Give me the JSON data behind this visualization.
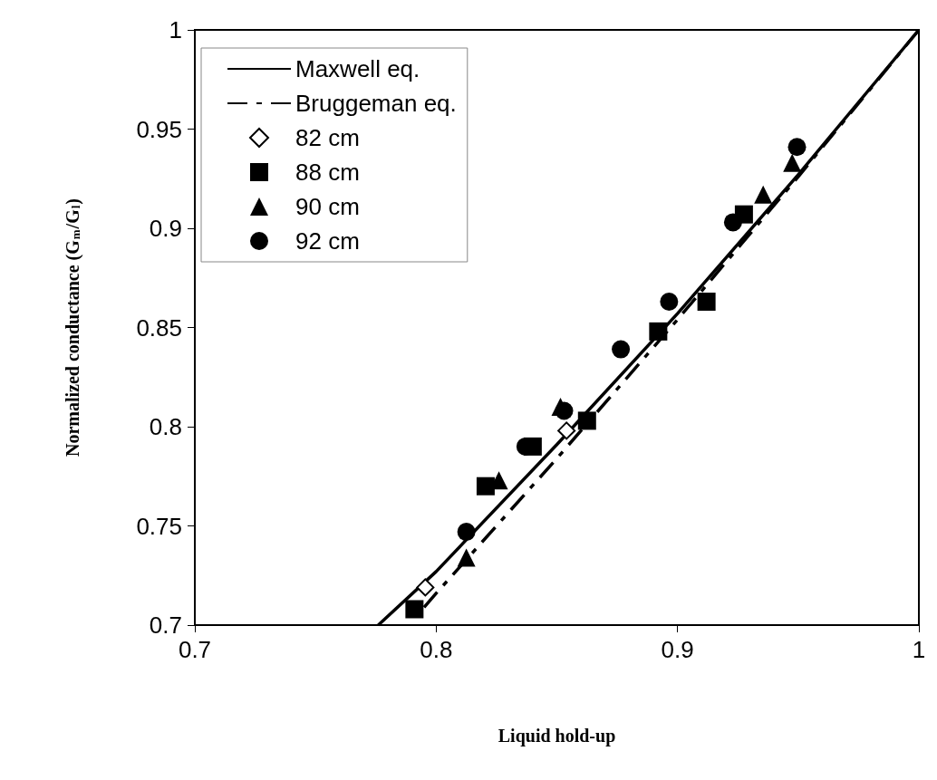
{
  "chart_data": {
    "type": "scatter",
    "xlabel": "Liquid hold-up",
    "ylabel": "Normalized conductance (G$_{m}$/G$_{l}$)",
    "xlim": [
      0.7,
      1
    ],
    "xticks": [
      0.7,
      0.8,
      0.9,
      1
    ],
    "ylim": [
      0.7,
      1
    ],
    "yticks": [
      0.7,
      0.75,
      0.8,
      0.85,
      0.9,
      0.95,
      1
    ],
    "grid": false,
    "legend": "top left",
    "series": [
      {
        "name": "Maxwell eq.",
        "type": "line",
        "marker": "none",
        "line_style": "solid",
        "color": "#000000",
        "x": [
          0.776,
          0.8,
          0.85,
          0.9,
          0.95,
          1
        ],
        "values": [
          0.7,
          0.727,
          0.791,
          0.857,
          0.927,
          1
        ]
      },
      {
        "name": "Bruggeman eq.",
        "type": "line",
        "marker": "none",
        "line_style": "dashdot",
        "color": "#000000",
        "x": [
          0.795,
          0.8,
          0.85,
          0.9,
          0.95,
          1
        ],
        "values": [
          0.709,
          0.716,
          0.784,
          0.854,
          0.926,
          1
        ]
      },
      {
        "name": "82 cm",
        "marker": "diamond",
        "color": "#ffffff",
        "x": [
          0.7955,
          0.854
        ],
        "values": [
          0.719,
          0.798
        ]
      },
      {
        "name": "88 cm",
        "marker": "square",
        "color": "#000000",
        "x": [
          0.791,
          0.8205,
          0.84,
          0.8625,
          0.892,
          0.912,
          0.9275
        ],
        "values": [
          0.708,
          0.77,
          0.79,
          0.803,
          0.848,
          0.863,
          0.907
        ]
      },
      {
        "name": "90 cm",
        "marker": "triangle",
        "color": "#000000",
        "x": [
          0.8125,
          0.826,
          0.8515,
          0.9355,
          0.9475
        ],
        "values": [
          0.734,
          0.773,
          0.81,
          0.917,
          0.933
        ]
      },
      {
        "name": "92 cm",
        "marker": "circle",
        "color": "#000000",
        "x": [
          0.8125,
          0.837,
          0.853,
          0.8765,
          0.8965,
          0.923,
          0.9495
        ],
        "values": [
          0.747,
          0.79,
          0.808,
          0.839,
          0.863,
          0.903,
          0.941
        ]
      }
    ]
  }
}
